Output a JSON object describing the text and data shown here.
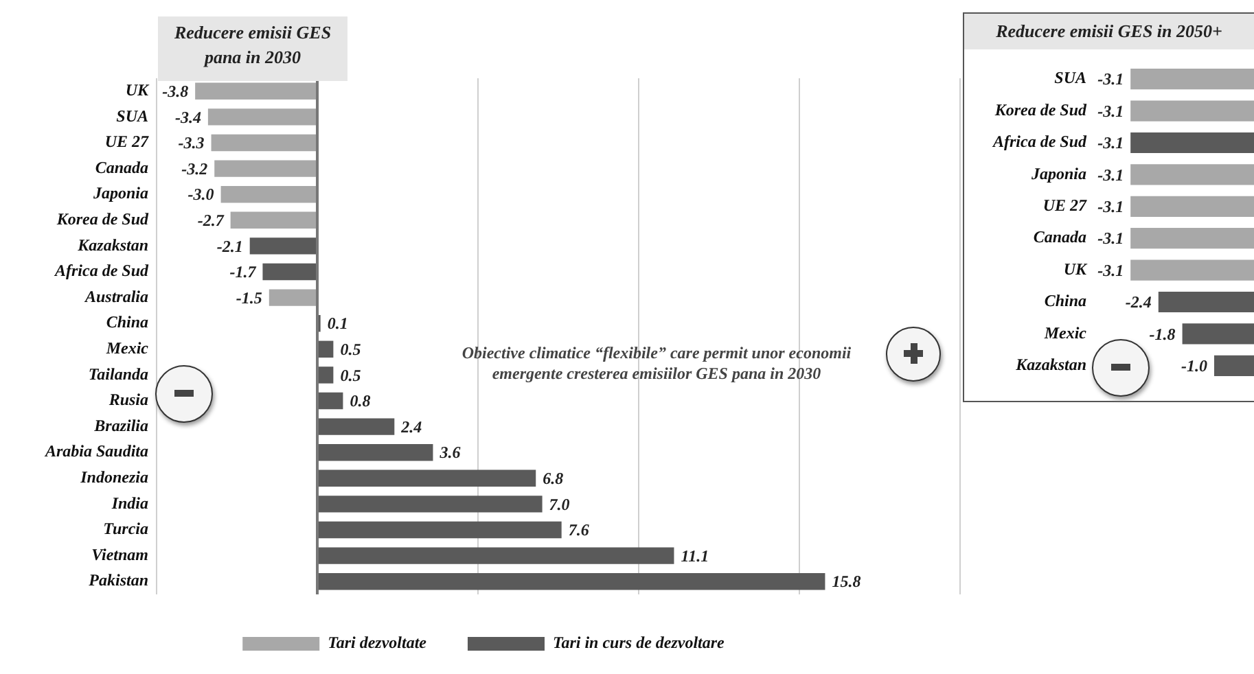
{
  "chart_data": [
    {
      "type": "bar",
      "orientation": "horizontal",
      "stacked": true,
      "title": "Reducere emisii GES pana in 2030",
      "categories": [
        "UK",
        "SUA",
        "UE 27",
        "Canada",
        "Japonia",
        "Korea de Sud",
        "Kazakstan",
        "Africa de Sud",
        "Australia",
        "China",
        "Mexic",
        "Tailanda",
        "Rusia",
        "Brazilia",
        "Arabia Saudita",
        "Indonezia",
        "India",
        "Turcia",
        "Vietnam",
        "Pakistan"
      ],
      "series": [
        {
          "name": "Tari dezvoltate",
          "color": "#a8a8a8",
          "values": [
            -3.8,
            -3.4,
            -3.3,
            -3.2,
            -3.0,
            -2.7,
            null,
            null,
            -1.5,
            null,
            null,
            null,
            null,
            null,
            null,
            null,
            null,
            null,
            null,
            null
          ],
          "value_labels": [
            "-3.8",
            "-3.4",
            "-3.3",
            "-3.2",
            "-3.0",
            "-2.7",
            null,
            null,
            "-1.5",
            null,
            null,
            null,
            null,
            null,
            null,
            null,
            null,
            null,
            null,
            null
          ]
        },
        {
          "name": "Tari in curs de dezvoltare",
          "color": "#5a5a5a",
          "values": [
            null,
            null,
            null,
            null,
            null,
            null,
            -2.1,
            -1.7,
            null,
            0.1,
            0.5,
            0.5,
            0.8,
            2.4,
            3.6,
            6.8,
            7.0,
            7.6,
            11.1,
            15.8
          ],
          "value_labels": [
            null,
            null,
            null,
            null,
            null,
            null,
            "-2.1",
            "-1.7",
            null,
            "0.1",
            "0.5",
            "0.5",
            "0.8",
            "2.4",
            "3.6",
            "6.8",
            "7.0",
            "7.6",
            "11.1",
            "15.8"
          ]
        }
      ],
      "grid": "x",
      "tick_labels": "y",
      "legend": "bottom",
      "annotations": [
        "Obiective climatice “flexibile” care permit unor economii emergente cresterea emisiilor GES pana in 2030"
      ]
    },
    {
      "type": "bar",
      "orientation": "horizontal",
      "title": "Reducere emisii GES in 2050+",
      "categories": [
        "SUA",
        "Korea de Sud",
        "Africa de Sud",
        "Japonia",
        "UE 27",
        "Canada",
        "UK",
        "China",
        "Mexic",
        "Kazakstan"
      ],
      "values": [
        -3.1,
        -3.1,
        -3.1,
        -3.1,
        -3.1,
        -3.1,
        -3.1,
        -2.4,
        -1.8,
        -1.0
      ],
      "value_labels": [
        "-3.1",
        "-3.1",
        "-3.1",
        "-3.1",
        "-3.1",
        "-3.1",
        "-3.1",
        "-2.4",
        "-1.8",
        "-1.0"
      ],
      "colors": [
        "#a8a8a8",
        "#a8a8a8",
        "#5a5a5a",
        "#a8a8a8",
        "#a8a8a8",
        "#a8a8a8",
        "#a8a8a8",
        "#5a5a5a",
        "#5a5a5a",
        "#5a5a5a"
      ],
      "tick_labels": "y",
      "grid": false,
      "legend": false
    }
  ]
}
